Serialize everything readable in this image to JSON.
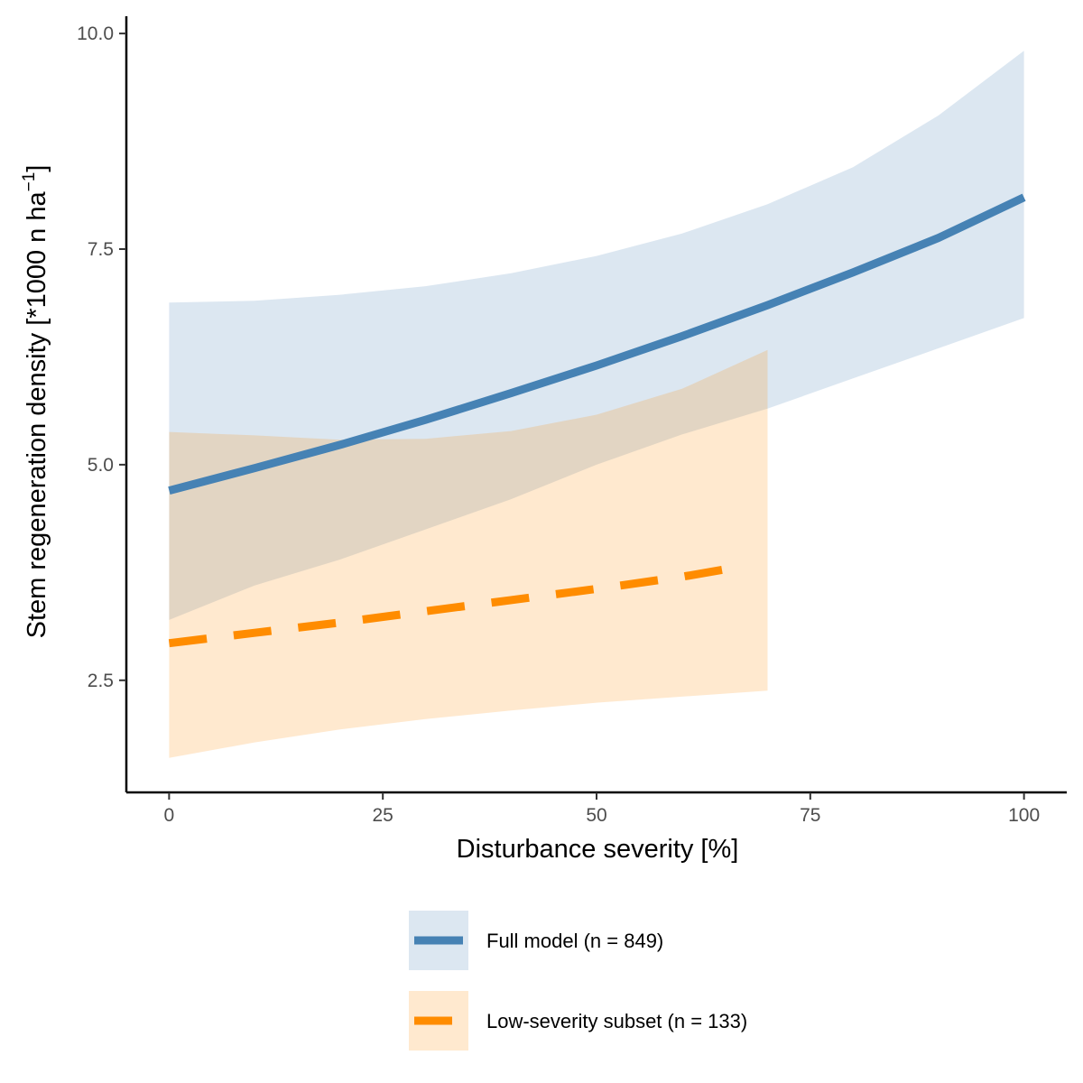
{
  "chart_data": {
    "type": "line",
    "xlabel": "Disturbance severity [%]",
    "ylabel": "Stem regeneration density [*1000 n ha",
    "ylabel_superscript": "−1",
    "ylabel_close": "]",
    "xlim": [
      -5,
      105
    ],
    "ylim": [
      1.2,
      10.2
    ],
    "x_ticks": [
      0,
      25,
      50,
      75,
      100
    ],
    "x_tick_labels": [
      "0",
      "25",
      "50",
      "75",
      "100"
    ],
    "y_ticks": [
      2.5,
      5.0,
      7.5,
      10.0
    ],
    "y_tick_labels": [
      "2.5",
      "5.0",
      "7.5",
      "10.0"
    ],
    "grid": false,
    "legend_position": "bottom",
    "series": [
      {
        "name": "Full model (n = 849)",
        "color": "#4682B4",
        "ribbon_color": "#dbe6f0",
        "line_style": "solid",
        "x": [
          0,
          10,
          20,
          30,
          40,
          50,
          60,
          70,
          80,
          90,
          100
        ],
        "y": [
          4.7,
          4.96,
          5.23,
          5.52,
          5.83,
          6.15,
          6.49,
          6.85,
          7.23,
          7.63,
          8.1
        ],
        "lower": [
          3.2,
          3.6,
          3.9,
          4.25,
          4.6,
          5.0,
          5.35,
          5.65,
          6.0,
          6.35,
          6.7
        ],
        "upper": [
          6.88,
          6.9,
          6.97,
          7.07,
          7.22,
          7.42,
          7.68,
          8.02,
          8.45,
          9.05,
          9.8
        ]
      },
      {
        "name": "Low-severity subset (n = 133)",
        "color": "#FF8C00",
        "ribbon_color": "#fde8cd",
        "line_style": "dashed",
        "x": [
          0,
          10,
          20,
          30,
          40,
          50,
          60,
          67
        ],
        "y": [
          2.93,
          3.05,
          3.17,
          3.3,
          3.43,
          3.56,
          3.7,
          3.82
        ],
        "ribbon_x": [
          0,
          10,
          20,
          30,
          40,
          50,
          60,
          70
        ],
        "lower": [
          1.6,
          1.78,
          1.93,
          2.05,
          2.15,
          2.24,
          2.31,
          2.38
        ],
        "upper": [
          5.38,
          5.34,
          5.29,
          5.3,
          5.39,
          5.58,
          5.88,
          6.33
        ]
      }
    ]
  }
}
